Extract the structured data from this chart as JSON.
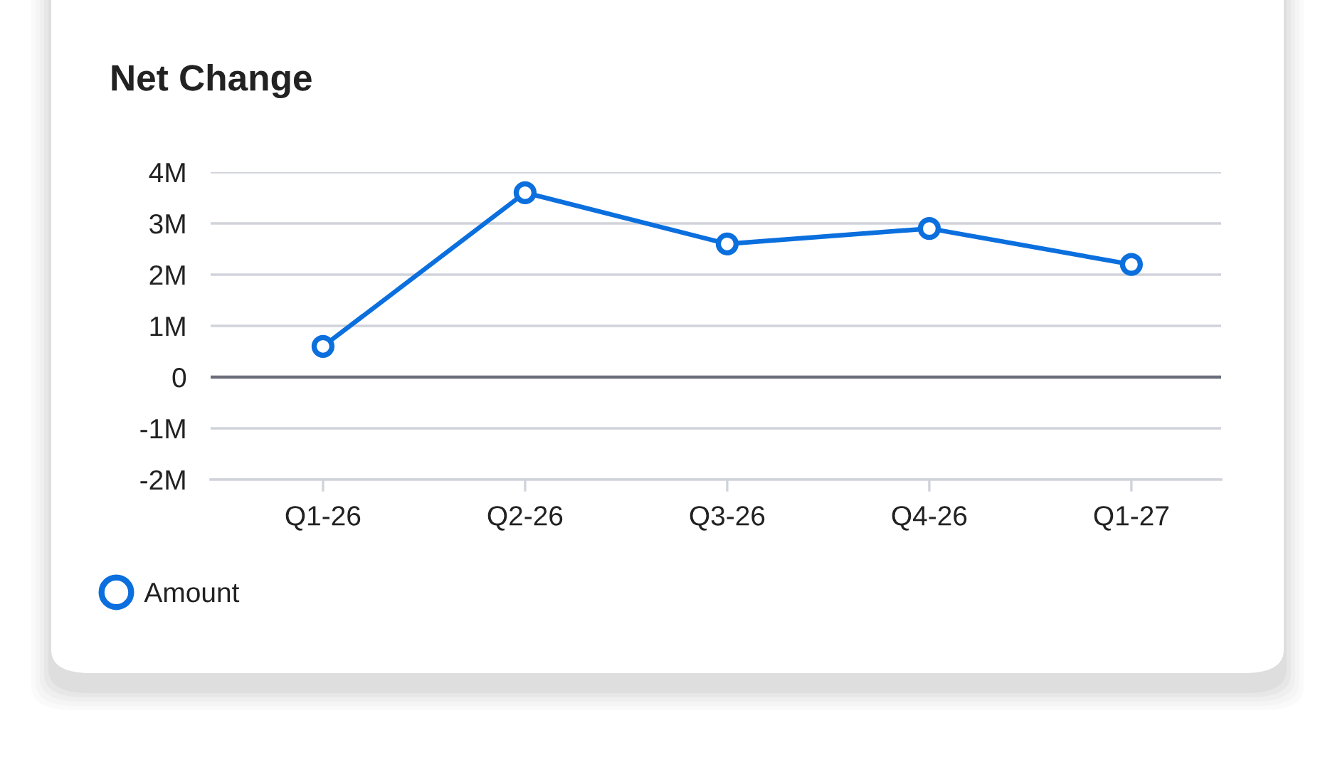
{
  "chart_data": {
    "type": "line",
    "title": "Net Change",
    "categories": [
      "Q1-26",
      "Q2-26",
      "Q3-26",
      "Q4-26",
      "Q1-27"
    ],
    "series": [
      {
        "name": "Amount",
        "color": "#0b6fde",
        "values": [
          0.6,
          3.6,
          2.6,
          2.9,
          2.2
        ]
      }
    ],
    "ylim": [
      -2,
      4
    ],
    "yticks": [
      {
        "value": -2,
        "label": "-2M"
      },
      {
        "value": -1,
        "label": "-1M"
      },
      0,
      {
        "value": 1,
        "label": "1M"
      },
      {
        "value": 2,
        "label": "2M"
      },
      {
        "value": 3,
        "label": "3M"
      },
      {
        "value": 4,
        "label": "4M"
      }
    ],
    "ref_lines": [
      {
        "axis": "y",
        "value": 0,
        "color": "#6b6e7a"
      }
    ],
    "grid": "y",
    "legend": "bottom left",
    "marker": "circle",
    "line_style": "solid"
  }
}
